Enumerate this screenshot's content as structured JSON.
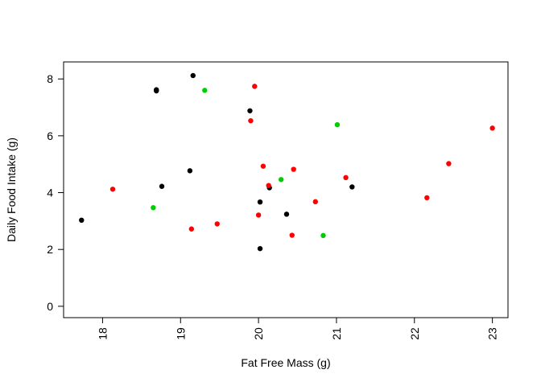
{
  "chart_data": {
    "type": "scatter",
    "title": "",
    "xlabel": "Fat Free Mass (g)",
    "ylabel": "Daily Food Intake (g)",
    "xlim": [
      17.5,
      23.2
    ],
    "ylim": [
      -0.4,
      8.6
    ],
    "x_ticks": [
      18,
      19,
      20,
      21,
      22,
      23
    ],
    "y_ticks": [
      0,
      2,
      4,
      6,
      8
    ],
    "x_tick_labels": [
      "18",
      "19",
      "20",
      "21",
      "22",
      "23"
    ],
    "y_tick_labels": [
      "0",
      "2",
      "4",
      "6",
      "8"
    ],
    "grid": false,
    "legend": "none",
    "colors": {
      "black": "#000000",
      "red": "#ff0000",
      "green": "#00cd00"
    },
    "points": [
      {
        "x": 17.73,
        "y": 3.03,
        "color": "black"
      },
      {
        "x": 18.69,
        "y": 7.62,
        "color": "black"
      },
      {
        "x": 18.69,
        "y": 7.58,
        "color": "black"
      },
      {
        "x": 18.76,
        "y": 4.22,
        "color": "black"
      },
      {
        "x": 19.12,
        "y": 4.77,
        "color": "black"
      },
      {
        "x": 19.16,
        "y": 8.12,
        "color": "black"
      },
      {
        "x": 19.89,
        "y": 6.88,
        "color": "black"
      },
      {
        "x": 20.02,
        "y": 3.67,
        "color": "black"
      },
      {
        "x": 20.02,
        "y": 2.03,
        "color": "black"
      },
      {
        "x": 20.14,
        "y": 4.17,
        "color": "black"
      },
      {
        "x": 20.36,
        "y": 3.24,
        "color": "black"
      },
      {
        "x": 21.2,
        "y": 4.2,
        "color": "black"
      },
      {
        "x": 18.13,
        "y": 4.12,
        "color": "red"
      },
      {
        "x": 19.14,
        "y": 2.72,
        "color": "red"
      },
      {
        "x": 19.47,
        "y": 2.9,
        "color": "red"
      },
      {
        "x": 19.9,
        "y": 6.53,
        "color": "red"
      },
      {
        "x": 19.95,
        "y": 7.74,
        "color": "red"
      },
      {
        "x": 20.0,
        "y": 3.21,
        "color": "red"
      },
      {
        "x": 20.06,
        "y": 4.93,
        "color": "red"
      },
      {
        "x": 20.13,
        "y": 4.25,
        "color": "red"
      },
      {
        "x": 20.43,
        "y": 2.5,
        "color": "red"
      },
      {
        "x": 20.45,
        "y": 4.82,
        "color": "red"
      },
      {
        "x": 20.73,
        "y": 3.68,
        "color": "red"
      },
      {
        "x": 21.12,
        "y": 4.53,
        "color": "red"
      },
      {
        "x": 22.16,
        "y": 3.82,
        "color": "red"
      },
      {
        "x": 22.44,
        "y": 5.02,
        "color": "red"
      },
      {
        "x": 23.0,
        "y": 6.27,
        "color": "red"
      },
      {
        "x": 18.65,
        "y": 3.47,
        "color": "green"
      },
      {
        "x": 19.31,
        "y": 7.6,
        "color": "green"
      },
      {
        "x": 20.29,
        "y": 4.46,
        "color": "green"
      },
      {
        "x": 20.83,
        "y": 2.49,
        "color": "green"
      },
      {
        "x": 21.01,
        "y": 6.39,
        "color": "green"
      }
    ]
  }
}
